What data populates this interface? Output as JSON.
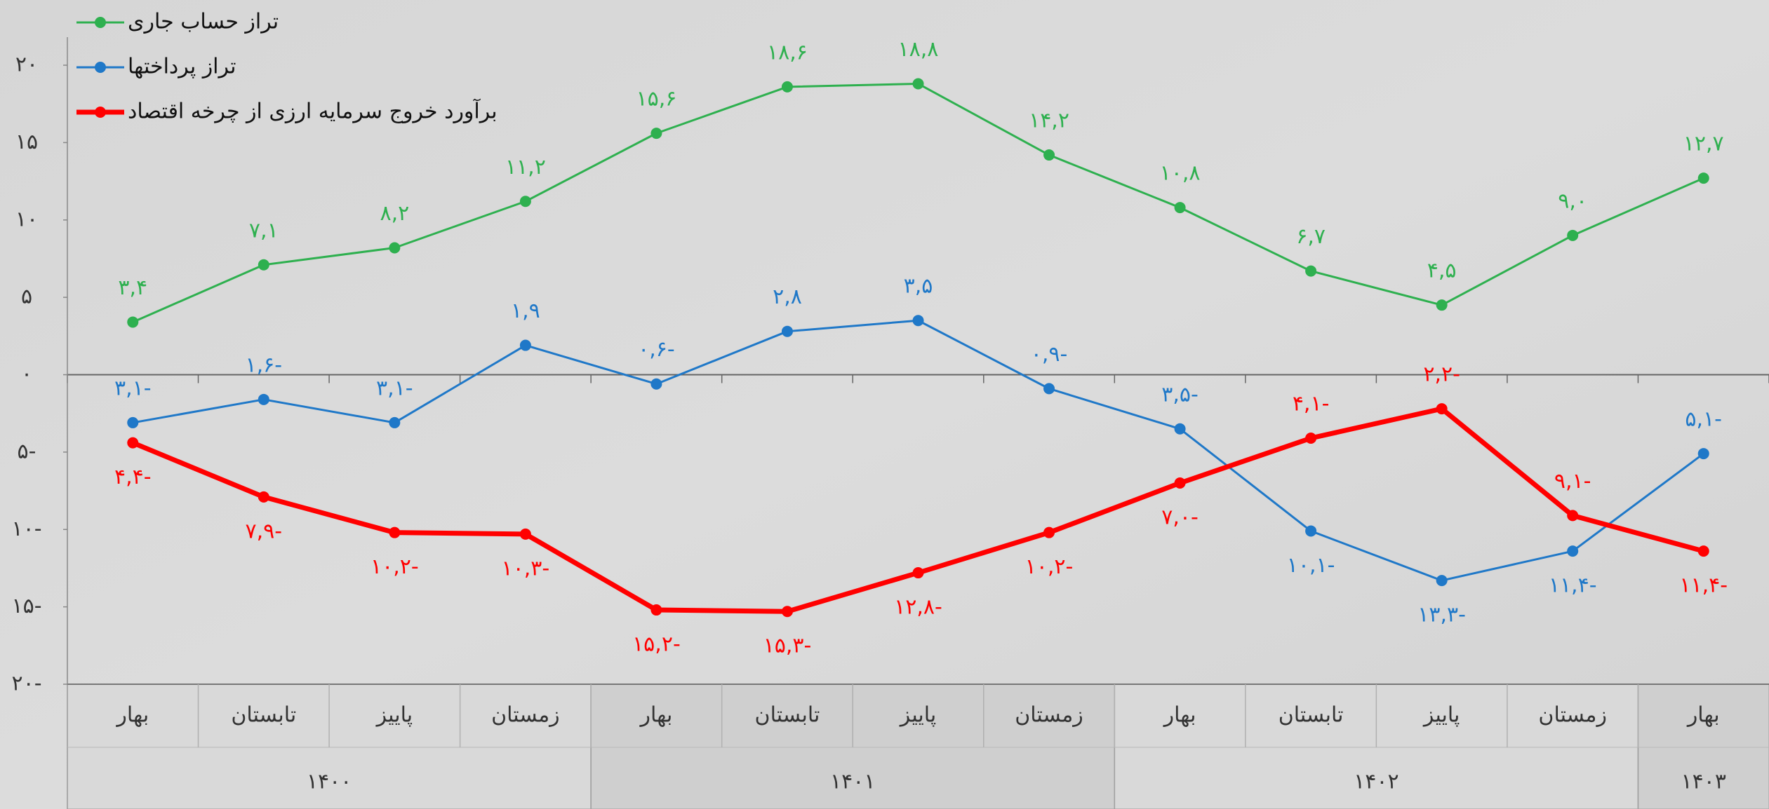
{
  "chart_data": {
    "type": "line",
    "groups": [
      {
        "label": "۱۴۰۰",
        "categories": [
          "بهار",
          "تابستان",
          "پاییز",
          "زمستان"
        ]
      },
      {
        "label": "۱۴۰۱",
        "categories": [
          "بهار",
          "تابستان",
          "پاییز",
          "زمستان"
        ]
      },
      {
        "label": "۱۴۰۲",
        "categories": [
          "بهار",
          "تابستان",
          "پاییز",
          "زمستان"
        ]
      },
      {
        "label": "۱۴۰۳",
        "categories": [
          "بهار"
        ]
      }
    ],
    "series": [
      {
        "name": "تراز حساب جاری",
        "color": "#2eb04f",
        "values": [
          3.4,
          7.1,
          8.2,
          11.2,
          15.6,
          18.6,
          18.8,
          14.2,
          10.8,
          6.7,
          4.5,
          9.0,
          12.7
        ],
        "value_labels": [
          "۳,۴",
          "۷,۱",
          "۸,۲",
          "۱۱,۲",
          "۱۵,۶",
          "۱۸,۶",
          "۱۸,۸",
          "۱۴,۲",
          "۱۰,۸",
          "۶,۷",
          "۴,۵",
          "۹,۰",
          "۱۲,۷"
        ]
      },
      {
        "name": "تراز پرداختها",
        "color": "#1f78c8",
        "values": [
          -3.1,
          -1.6,
          -3.1,
          1.9,
          -0.6,
          2.8,
          3.5,
          -0.9,
          -3.5,
          -10.1,
          -13.3,
          -11.4,
          -5.1
        ],
        "value_labels": [
          "۳,۱-",
          "۱,۶-",
          "۳,۱-",
          "۱,۹",
          "۰,۶-",
          "۲,۸",
          "۳,۵",
          "۰,۹-",
          "۳,۵-",
          "۱۰,۱-",
          "۱۳,۳-",
          "۱۱,۴-",
          "۵,۱-"
        ]
      },
      {
        "name": "برآورد خروج سرمایه ارزی از چرخه اقتصاد",
        "color": "#ff0000",
        "values": [
          -4.4,
          -7.9,
          -10.2,
          -10.3,
          -15.2,
          -15.3,
          -12.8,
          -10.2,
          -7.0,
          -4.1,
          -2.2,
          -9.1,
          -11.4
        ],
        "value_labels": [
          "۴,۴-",
          "۷,۹-",
          "۱۰,۲-",
          "۱۰,۳-",
          "۱۵,۲-",
          "۱۵,۳-",
          "۱۲,۸-",
          "۱۰,۲-",
          "۷,۰-",
          "۴,۱-",
          "۲,۲-",
          "۹,۱-",
          "۱۱,۴-"
        ]
      }
    ],
    "ylim": [
      -20,
      20
    ],
    "yticks": [
      {
        "value": 20,
        "label": "۲۰"
      },
      {
        "value": 15,
        "label": "۱۵"
      },
      {
        "value": 10,
        "label": "۱۰"
      },
      {
        "value": 5,
        "label": "۵"
      },
      {
        "value": 0,
        "label": "۰"
      },
      {
        "value": -5,
        "label": "۵-"
      },
      {
        "value": -10,
        "label": "۱۰-"
      },
      {
        "value": -15,
        "label": "۱۵-"
      },
      {
        "value": -20,
        "label": "۲۰-"
      }
    ],
    "legend": "top-left"
  }
}
